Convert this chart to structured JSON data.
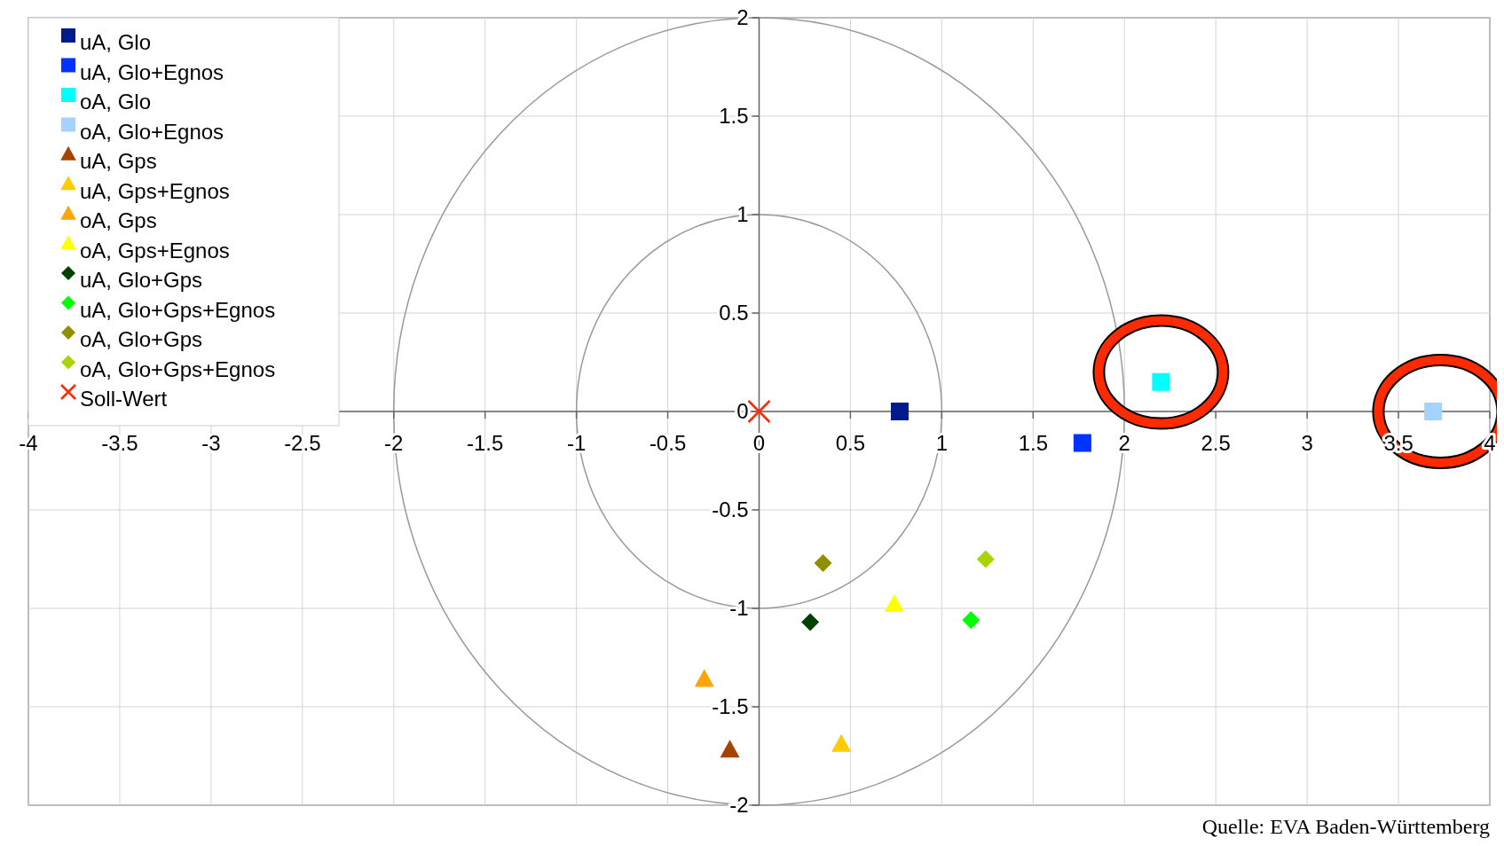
{
  "chart_data": {
    "type": "scatter",
    "xlim": [
      -4,
      4
    ],
    "ylim": [
      -2,
      2
    ],
    "xticks": [
      -4,
      -3.5,
      -3,
      -2.5,
      -2,
      -1.5,
      -1,
      -0.5,
      0,
      0.5,
      1,
      1.5,
      2,
      2.5,
      3,
      3.5,
      4
    ],
    "yticks": [
      -2,
      -1.5,
      -1,
      -0.5,
      0,
      0.5,
      1,
      1.5,
      2
    ],
    "grid": true,
    "legend": "top left",
    "annotations": [
      "Quelle: EVA Baden-Württemberg"
    ],
    "series": [
      {
        "name": "uA, Glo",
        "color": "#001a8c",
        "marker": "square",
        "x": [
          0.77
        ],
        "values": [
          0
        ]
      },
      {
        "name": "uA, Glo+Egnos",
        "color": "#0033ff",
        "marker": "square",
        "x": [
          1.77
        ],
        "values": [
          -0.16
        ]
      },
      {
        "name": "oA, Glo",
        "color": "#00ffff",
        "marker": "square",
        "x": [
          2.2
        ],
        "values": [
          0.15
        ]
      },
      {
        "name": "oA, Glo+Egnos",
        "color": "#a6d2ff",
        "marker": "square",
        "x": [
          3.69
        ],
        "values": [
          0
        ]
      },
      {
        "name": "uA, Gps",
        "color": "#a64300",
        "marker": "triangle",
        "x": [
          -0.16
        ],
        "values": [
          -1.72
        ]
      },
      {
        "name": "uA, Gps+Egnos",
        "color": "#ffcc00",
        "marker": "triangle",
        "x": [
          0.45
        ],
        "values": [
          -1.69
        ]
      },
      {
        "name": "oA, Gps",
        "color": "#ffa500",
        "marker": "triangle",
        "x": [
          -0.3
        ],
        "values": [
          -1.36
        ]
      },
      {
        "name": "oA, Gps+Egnos",
        "color": "#ffff00",
        "marker": "triangle",
        "x": [
          0.74
        ],
        "values": [
          -0.98
        ]
      },
      {
        "name": "uA, Glo+Gps",
        "color": "#004000",
        "marker": "diamond",
        "x": [
          0.28
        ],
        "values": [
          -1.07
        ]
      },
      {
        "name": "uA, Glo+Gps+Egnos",
        "color": "#00ff00",
        "marker": "diamond",
        "x": [
          1.16
        ],
        "values": [
          -1.06
        ]
      },
      {
        "name": "oA, Glo+Gps",
        "color": "#8f8f00",
        "marker": "diamond",
        "x": [
          0.35
        ],
        "values": [
          -0.77
        ]
      },
      {
        "name": "oA, Glo+Gps+Egnos",
        "color": "#aad400",
        "marker": "diamond",
        "x": [
          1.24
        ],
        "values": [
          -0.75
        ]
      },
      {
        "name": "Soll-Wert",
        "color": "#ff2a00",
        "marker": "cross",
        "x": [
          0
        ],
        "values": [
          0
        ]
      }
    ]
  }
}
